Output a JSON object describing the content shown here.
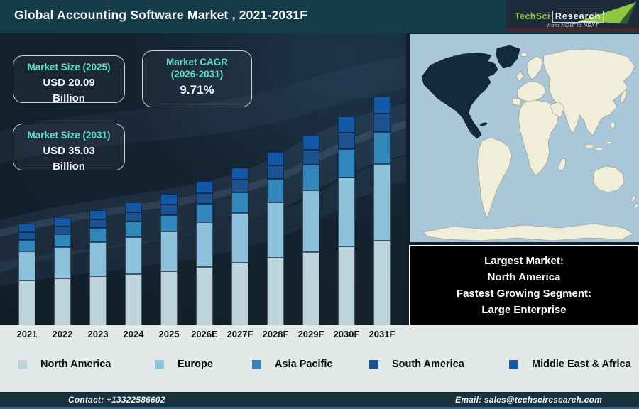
{
  "header": {
    "title": "Global Accounting Software Market , 2021-2031F",
    "logo": {
      "brand_first": "TechSci",
      "brand_second": "Research",
      "tagline": "from NOW to NEXT",
      "brand_green": "#8dc63f"
    }
  },
  "stat_boxes": [
    {
      "title": "Market Size (2025)",
      "value": "USD 20.09\nBillion"
    },
    {
      "title": "Market CAGR\n(2026-2031)",
      "value": "9.71%"
    },
    {
      "title": "Market Size (2031)",
      "value": "USD 35.03\nBillion"
    }
  ],
  "chart_data": {
    "type": "bar",
    "stacked": true,
    "title": "Global Accounting Software Market , 2021-2031F",
    "units": "USD Billion",
    "categories": [
      "2021",
      "2022",
      "2023",
      "2024",
      "2025",
      "2026E",
      "2027F",
      "2028F",
      "2029F",
      "2030F",
      "2031F"
    ],
    "totals": [
      15.54,
      16.57,
      17.67,
      18.84,
      20.09,
      22.04,
      24.18,
      26.53,
      29.11,
      31.93,
      35.03
    ],
    "series": [
      {
        "name": "North America",
        "color": "#bdd3de",
        "values": [
          6.84,
          7.17,
          7.53,
          7.89,
          8.28,
          8.93,
          9.62,
          10.37,
          11.18,
          12.04,
          12.96
        ]
      },
      {
        "name": "Europe",
        "color": "#8ec2dc",
        "values": [
          4.43,
          4.81,
          5.21,
          5.65,
          6.13,
          6.83,
          7.62,
          8.49,
          9.46,
          10.54,
          11.74
        ]
      },
      {
        "name": "Asia Pacific",
        "color": "#3186bb",
        "values": [
          1.79,
          1.95,
          2.12,
          2.31,
          2.51,
          2.81,
          3.14,
          3.52,
          3.93,
          4.39,
          4.9
        ]
      },
      {
        "name": "South America",
        "color": "#1d5291",
        "values": [
          1.17,
          1.25,
          1.34,
          1.44,
          1.55,
          1.71,
          1.89,
          2.08,
          2.3,
          2.54,
          2.8
        ]
      },
      {
        "name": "Middle East & Africa",
        "color": "#1158a8",
        "values": [
          1.32,
          1.39,
          1.47,
          1.54,
          1.63,
          1.76,
          1.91,
          2.07,
          2.24,
          2.43,
          2.63
        ]
      }
    ],
    "key_facts": {
      "market_size_2025_usd_billion": 20.09,
      "market_size_2031_usd_billion": 35.03,
      "cagr_2026_2031_percent": 9.71
    },
    "xlabel": "",
    "ylabel": "",
    "ylim": [
      0,
      38
    ],
    "grid": false,
    "legend_position": "bottom"
  },
  "map": {
    "highlight": "North America",
    "highlight_color": "#15293c",
    "ocean_color": "#a9c7d9",
    "land_color": "#f0edd8"
  },
  "info_box": {
    "lines": [
      "Largest Market:",
      "North America",
      "Fastest Growing Segment:",
      "Large Enterprise"
    ]
  },
  "footer": {
    "contact": "Contact: +13322586602",
    "email": "Email: sales@techsciresearch.com"
  },
  "colors": {
    "header_bg": "#173c49",
    "chart_bg": "#131e2c",
    "accent_teal": "#5fe0c4",
    "strip_bg": "#e3e8e8",
    "footer_bg": "#17313d",
    "footer_accent": "#2e6ca3"
  }
}
